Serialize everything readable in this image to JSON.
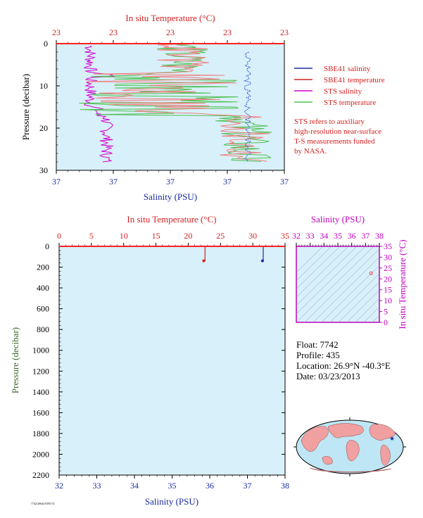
{
  "chart_data": [
    {
      "type": "line",
      "top_label": "In situ Temperature (°C)",
      "top_ticks": [
        "23",
        "23",
        "23",
        "23",
        "23"
      ],
      "bottom_label": "Salinity (PSU)",
      "bottom_ticks": [
        "37",
        "37",
        "37",
        "37",
        "37"
      ],
      "ylabel": "Pressure (decibar)",
      "y_ticks": [
        "0",
        "10",
        "20",
        "30"
      ],
      "ylim": [
        0,
        30
      ],
      "legend": [
        {
          "name": "SBE41 salinity",
          "color": "#1a2aa0"
        },
        {
          "name": "SBE41 temperature",
          "color": "#d42020"
        },
        {
          "name": "STS salinity",
          "color": "#d000d0"
        },
        {
          "name": "STS temperature",
          "color": "#50c050"
        }
      ],
      "note": [
        "STS refers to auxiliary",
        "high-resolution near-surface",
        "T-S measurements funded",
        "by NASA."
      ]
    },
    {
      "type": "line",
      "top_label": "In situ Temperature (°C)",
      "top_ticks": [
        "0",
        "5",
        "10",
        "15",
        "20",
        "25",
        "30",
        "35"
      ],
      "bottom_label": "Salinity (PSU)",
      "bottom_ticks": [
        "32",
        "33",
        "34",
        "35",
        "36",
        "37",
        "38"
      ],
      "ylabel": "Pressure (decibar)",
      "y_ticks": [
        "0",
        "200",
        "400",
        "600",
        "800",
        "1000",
        "1200",
        "1400",
        "1600",
        "1800",
        "2000",
        "2200"
      ],
      "ylim": [
        0,
        2200
      ],
      "temperature_xlim": [
        0,
        35
      ],
      "salinity_xlim": [
        32,
        38
      ],
      "series": [
        {
          "name": "temperature",
          "color": "#d42020",
          "points": [
            [
              22.6,
              0
            ],
            [
              22.6,
              140
            ],
            [
              22.4,
              140
            ]
          ]
        },
        {
          "name": "salinity",
          "color": "#1a2aa0",
          "points": [
            [
              37.42,
              0
            ],
            [
              37.42,
              140
            ],
            [
              37.4,
              140
            ]
          ]
        }
      ]
    },
    {
      "type": "scatter",
      "top_label": "Salinity (PSU)",
      "top_ticks": [
        "32",
        "33",
        "34",
        "35",
        "36",
        "37",
        "38"
      ],
      "right_label": "In situ Temperature (°C)",
      "right_ticks": [
        "0",
        "5",
        "10",
        "15",
        "20",
        "25",
        "30",
        "35"
      ],
      "xlim": [
        32,
        38
      ],
      "ylim": [
        0,
        35
      ],
      "points": [
        [
          37.4,
          22.6
        ]
      ]
    }
  ],
  "float_info": {
    "float": "Float: 7742",
    "profile": "Profile: 435",
    "location": "Location: 26.9°N -40.3°E",
    "date": "Date: 03/23/2013"
  },
  "map": {
    "marker_color": "#1a2aa0",
    "ocean_color": "#bfe6f5",
    "land_color": "#f0a0a0"
  },
  "footer_code": "7742/20644 0395/74"
}
